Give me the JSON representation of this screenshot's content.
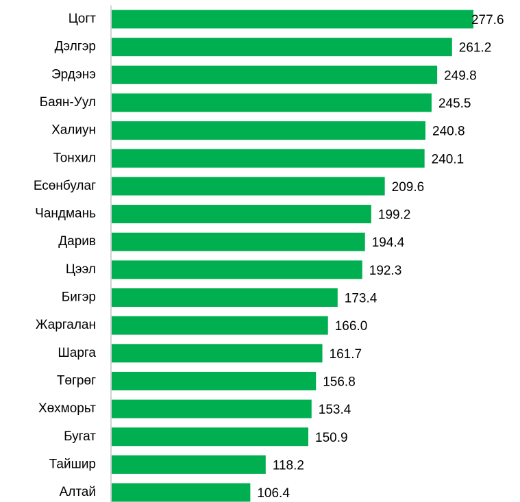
{
  "chart_data": {
    "type": "bar",
    "orientation": "horizontal",
    "categories": [
      "Цогт",
      "Дэлгэр",
      "Эрдэнэ",
      "Баян-Уул",
      "Халиун",
      "Тонхил",
      "Есөнбулаг",
      "Чандмань",
      "Дарив",
      "Цээл",
      "Бигэр",
      "Жаргалан",
      "Шарга",
      "Төгрөг",
      "Хөхморьт",
      "Бугат",
      "Тайшир",
      "Алтай"
    ],
    "values": [
      277.6,
      261.2,
      249.8,
      245.5,
      240.8,
      240.1,
      209.6,
      199.2,
      194.4,
      192.3,
      173.4,
      166.0,
      161.7,
      156.8,
      153.4,
      150.9,
      118.2,
      106.4
    ],
    "value_labels": [
      "277.6",
      "261.2",
      "249.8",
      "245.5",
      "240.8",
      "240.1",
      "209.6",
      "199.2",
      "194.4",
      "192.3",
      "173.4",
      "166.0",
      "161.7",
      "156.8",
      "153.4",
      "150.9",
      "118.2",
      "106.4"
    ],
    "color": "#00b050"
  }
}
